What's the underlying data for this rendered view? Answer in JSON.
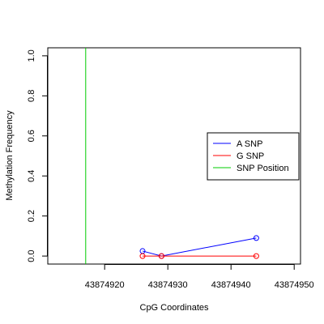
{
  "chart_data": {
    "type": "line",
    "xlabel": "CpG Coordinates",
    "ylabel": "Methylation Frequency",
    "xlim": [
      43874911,
      43874951
    ],
    "ylim": [
      -0.04,
      1.04
    ],
    "x_ticks": [
      43874920,
      43874930,
      43874940,
      43874950
    ],
    "x_tick_labels": [
      "43874920",
      "43874930",
      "43874940",
      "43874950"
    ],
    "y_ticks": [
      0,
      0.2,
      0.4,
      0.6,
      0.8,
      1.0
    ],
    "y_tick_labels": [
      "0.0",
      "0.2",
      "0.4",
      "0.6",
      "0.8",
      "1.0"
    ],
    "grid": false,
    "legend_position": "right",
    "series": [
      {
        "name": "A SNP",
        "color": "#0000ff",
        "x": [
          43874926,
          43874929,
          43874944
        ],
        "y": [
          0.025,
          0.0,
          0.09
        ]
      },
      {
        "name": "G SNP",
        "color": "#ff0000",
        "x": [
          43874926,
          43874929,
          43874944
        ],
        "y": [
          0.0,
          0.0,
          0.0
        ]
      }
    ],
    "snp_position": {
      "name": "SNP Position",
      "color": "#00cc00",
      "x": 43874917
    }
  }
}
